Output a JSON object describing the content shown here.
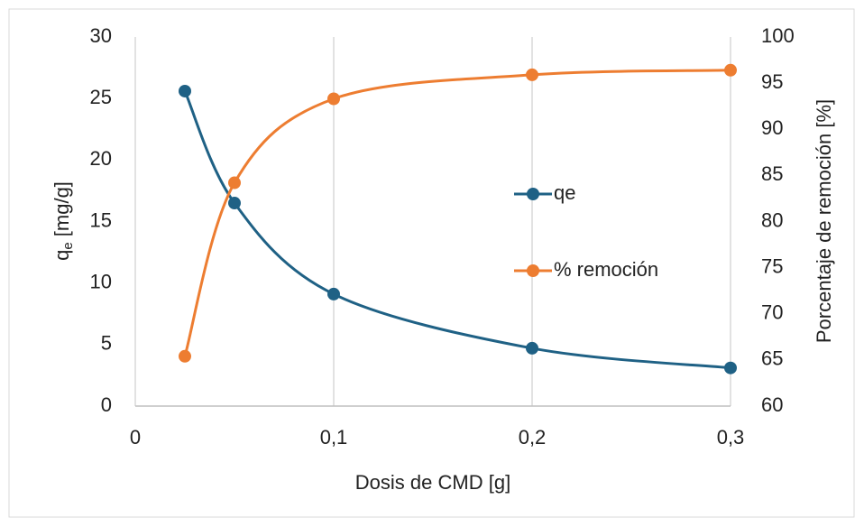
{
  "chart_data": {
    "type": "line",
    "x_label": "Dosis de CMD [g]",
    "y_label": [
      "q",
      "e",
      " [mg/g]"
    ],
    "y2_label": "Porcentaje de remoción [%]",
    "x": [
      0.025,
      0.05,
      0.1,
      0.2,
      0.3
    ],
    "series": [
      {
        "name": "qe",
        "color": "#1f6185",
        "values": [
          25.6,
          16.5,
          9.1,
          4.7,
          3.1
        ]
      },
      {
        "name": "% remoción",
        "color": "#ed7d31",
        "axis": "y2",
        "values": [
          65.4,
          84.2,
          93.3,
          95.9,
          96.4
        ]
      }
    ],
    "xlim": [
      0,
      0.3
    ],
    "xticks": [
      0,
      {
        "value": 0.1,
        "label": "0,1"
      },
      {
        "value": 0.2,
        "label": "0,2"
      },
      {
        "value": 0.3,
        "label": "0,3"
      }
    ],
    "ylim": [
      0,
      30
    ],
    "yticks": [
      0,
      5,
      10,
      15,
      20,
      25,
      30
    ],
    "y2lim": [
      60,
      100
    ],
    "y2ticks": [
      60,
      65,
      70,
      75,
      80,
      85,
      90,
      95,
      100
    ],
    "grid": true,
    "smooth": true
  }
}
